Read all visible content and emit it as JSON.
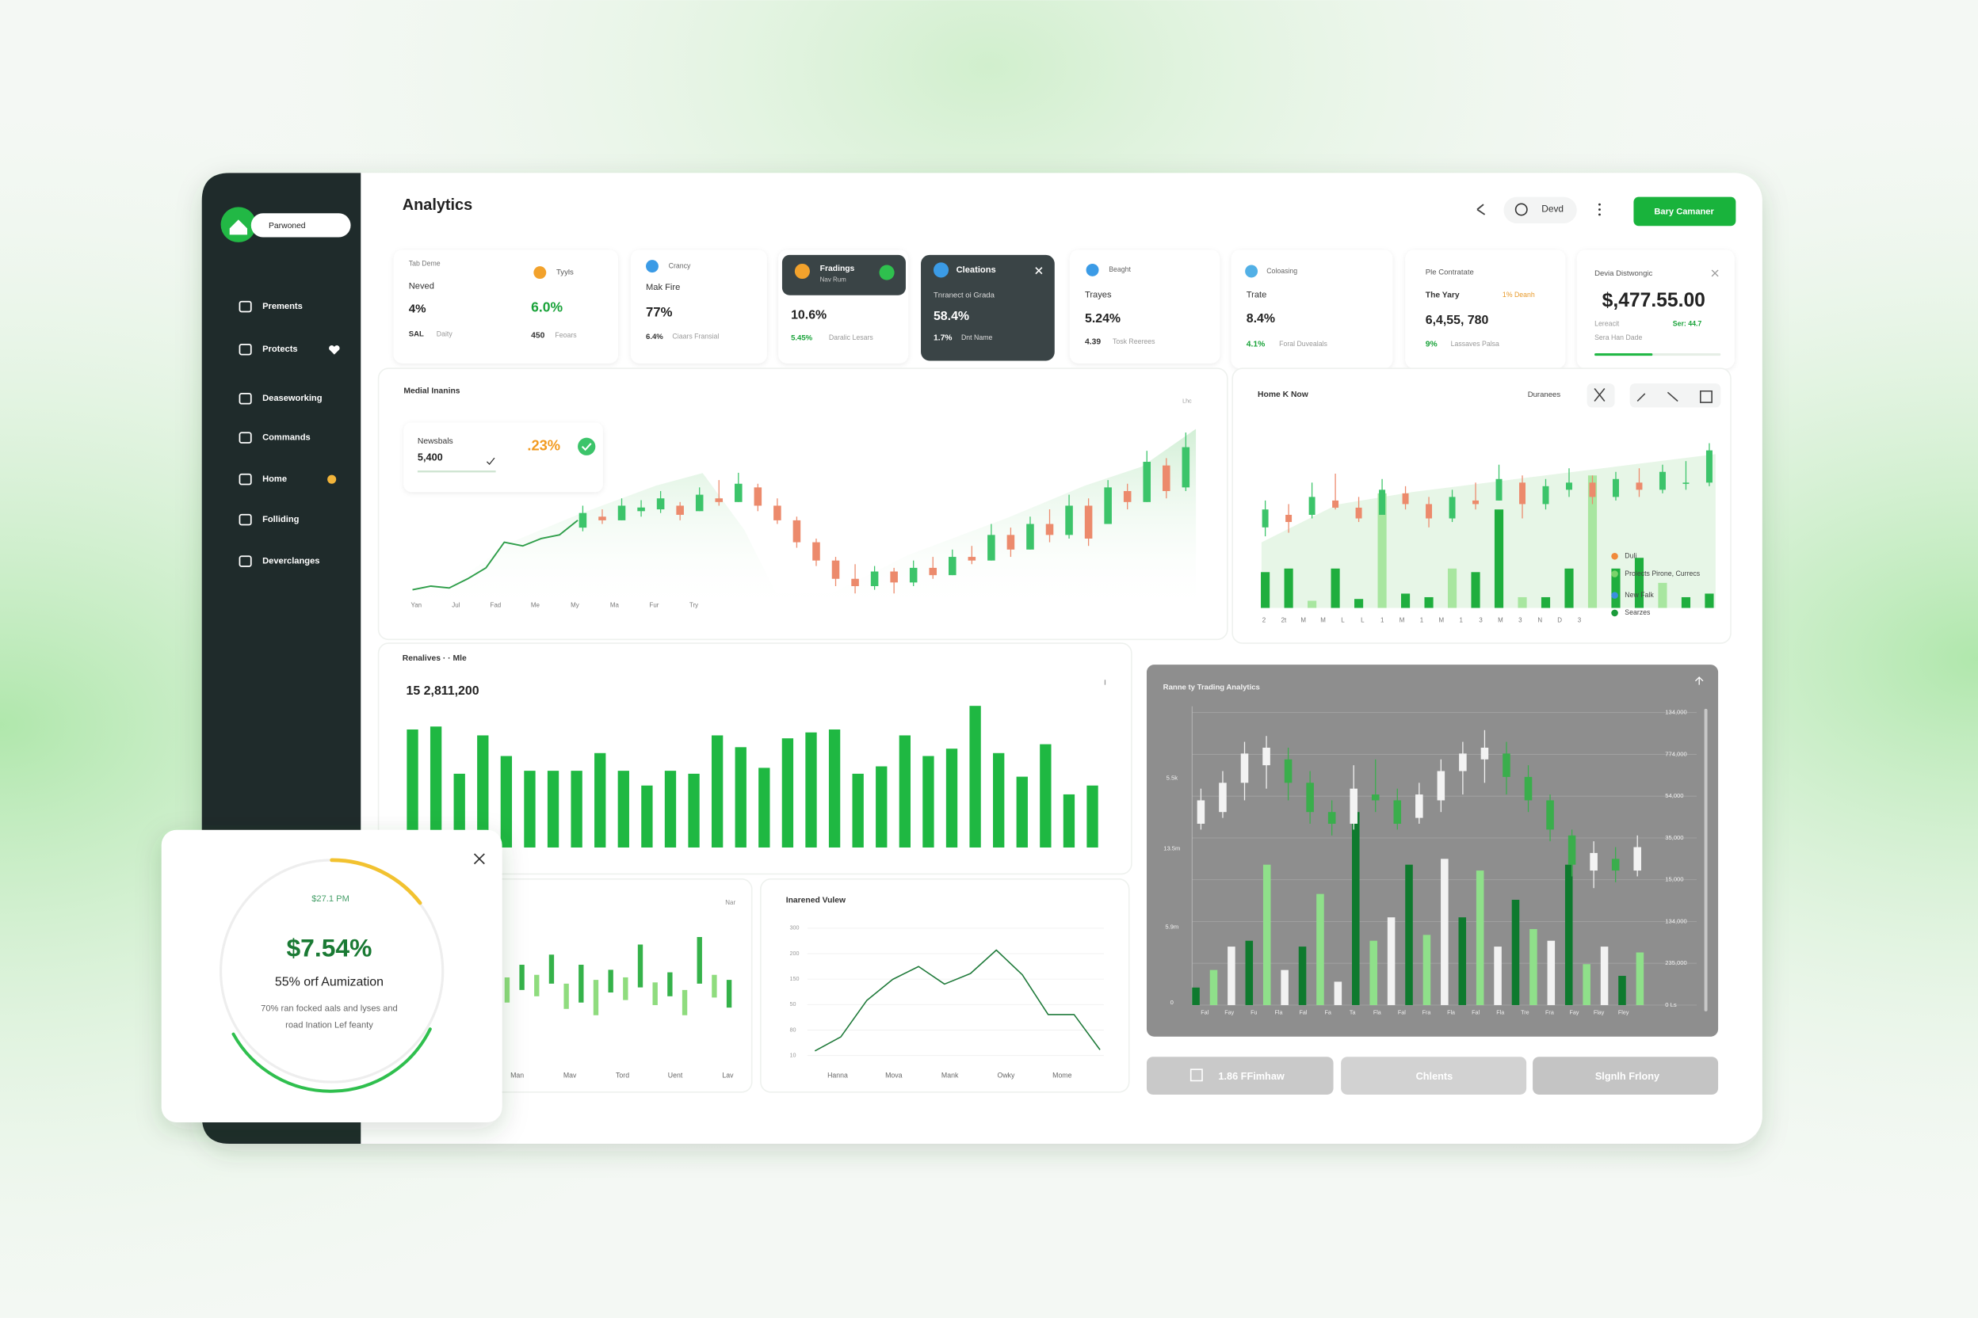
{
  "sidebar": {
    "brand": "Parwoned",
    "menu": [
      "Prements",
      "Protects",
      "Deaseworking",
      "Commands",
      "Home",
      "Folliding",
      "Deverclanges"
    ]
  },
  "header": {
    "title": "Analytics",
    "user": "Devd",
    "button": "Bary Camaner"
  },
  "kpis": [
    {
      "title": "Tab Deme",
      "tag": "Tyyls",
      "label": "Neved",
      "value": "4%",
      "change": "6.0%",
      "note_a": "SAL",
      "note_b": "Daity",
      "count": "450",
      "count_note": "Feoars"
    },
    {
      "tag": "Crancy",
      "label": "Mak Fire",
      "value": "77%",
      "change": "6.4%",
      "note": "Ciaars Fransial"
    },
    {
      "title": "Fradings",
      "subtitle": "Nav Rum",
      "value": "10.6%",
      "change": "5.45%",
      "note": "Daralic Lesars"
    },
    {
      "title": "Cleations",
      "label": "Tnranect oi Grada",
      "value": "58.4%",
      "change": "1.7%",
      "note": "Dnt Name"
    },
    {
      "tag": "Beaght",
      "label": "Trayes",
      "value": "5.24%",
      "change": "4.39",
      "note": "Tosk Reerees"
    },
    {
      "tag": "Coloasing",
      "label": "Trate",
      "value": "8.4%",
      "change": "4.1%",
      "note": "Foral Duvealals"
    },
    {
      "title": "Ple Contratate",
      "label": "The Yary",
      "badge": "1% Deanh",
      "value": "6,4,55, 780",
      "change": "9%",
      "note": "Lassaves Palsa"
    },
    {
      "title": "Devia Distwongic",
      "value": "$,477.55.00",
      "label": "Lereacit",
      "change": "Ser: 44.7",
      "note": "Sera Han Dade"
    }
  ],
  "price_chart": {
    "title": "Medial Inanins",
    "corner": "Lhc",
    "summary": {
      "label": "Newsbals",
      "value": "5,400",
      "change": ".23%"
    },
    "x_labels": [
      "Yan",
      "Jul",
      "Fad",
      "Me",
      "My",
      "Ma",
      "Fur",
      "Try"
    ],
    "ylim": [
      0,
      100
    ],
    "line_color": "#2f9e4a",
    "up_color": "#3cc46a",
    "down_color": "#ec8a6c",
    "line": [
      12,
      14,
      13,
      18,
      24,
      38,
      36,
      40,
      42,
      50
    ],
    "candles": [
      [
        44,
        46,
        54,
        58
      ],
      [
        48,
        52,
        50,
        56
      ],
      [
        50,
        50,
        58,
        62
      ],
      [
        52,
        55,
        57,
        61
      ],
      [
        54,
        56,
        62,
        66
      ],
      [
        50,
        58,
        53,
        60
      ],
      [
        55,
        55,
        64,
        68
      ],
      [
        58,
        62,
        60,
        72
      ],
      [
        60,
        60,
        70,
        76
      ],
      [
        55,
        68,
        58,
        70
      ],
      [
        48,
        58,
        50,
        62
      ],
      [
        35,
        50,
        38,
        52
      ],
      [
        25,
        38,
        28,
        40
      ],
      [
        14,
        28,
        18,
        30
      ],
      [
        10,
        18,
        14,
        26
      ],
      [
        12,
        14,
        22,
        25
      ],
      [
        10,
        22,
        16,
        24
      ],
      [
        14,
        16,
        24,
        28
      ],
      [
        18,
        24,
        20,
        30
      ],
      [
        20,
        20,
        30,
        34
      ],
      [
        26,
        30,
        28,
        36
      ],
      [
        28,
        28,
        42,
        48
      ],
      [
        30,
        42,
        34,
        46
      ],
      [
        34,
        34,
        48,
        52
      ],
      [
        38,
        48,
        42,
        56
      ],
      [
        40,
        42,
        58,
        64
      ],
      [
        36,
        58,
        40,
        62
      ],
      [
        48,
        48,
        68,
        72
      ],
      [
        56,
        66,
        60,
        70
      ],
      [
        60,
        60,
        82,
        88
      ],
      [
        62,
        80,
        66,
        84
      ],
      [
        66,
        68,
        90,
        98
      ]
    ]
  },
  "volume_chart": {
    "title": "Home K Now",
    "control": "Duranees",
    "legend": [
      {
        "name": "Duli",
        "color": "#f08a3c"
      },
      {
        "name": "Prolects Pirone, Currecs",
        "color": "#7ad36b"
      },
      {
        "name": "New Falk",
        "color": "#3b8fe0"
      },
      {
        "name": "Searzes",
        "color": "#1a9b3a"
      }
    ],
    "x_labels": [
      "2",
      "2t",
      "M",
      "M",
      "L",
      "L",
      "1",
      "M",
      "1",
      "M",
      "1",
      "3",
      "M",
      "3",
      "N",
      "D",
      "3"
    ],
    "ylim": [
      0,
      100
    ],
    "up_color": "#3cc46a",
    "down_color": "#ec8a6c",
    "bar_colors": [
      "#1fae3e",
      "#1fae3e",
      "#a8e6a0"
    ],
    "bars": [
      20,
      22,
      4,
      22,
      5,
      64,
      8,
      6,
      22,
      20,
      55,
      6,
      6,
      22,
      74,
      22,
      28,
      14,
      6,
      8
    ],
    "candles": [
      [
        40,
        45,
        55,
        60
      ],
      [
        42,
        52,
        48,
        58
      ],
      [
        50,
        52,
        62,
        70
      ],
      [
        55,
        60,
        56,
        75
      ],
      [
        48,
        56,
        50,
        62
      ],
      [
        52,
        52,
        66,
        72
      ],
      [
        55,
        64,
        58,
        68
      ],
      [
        45,
        58,
        50,
        62
      ],
      [
        48,
        50,
        62,
        66
      ],
      [
        55,
        60,
        58,
        70
      ],
      [
        60,
        60,
        72,
        80
      ],
      [
        50,
        70,
        58,
        74
      ],
      [
        55,
        58,
        68,
        72
      ],
      [
        62,
        66,
        70,
        78
      ],
      [
        58,
        70,
        62,
        74
      ],
      [
        60,
        62,
        72,
        76
      ],
      [
        62,
        70,
        66,
        78
      ],
      [
        64,
        66,
        76,
        80
      ],
      [
        66,
        70,
        70,
        82
      ],
      [
        68,
        70,
        88,
        92
      ]
    ]
  },
  "revenue_chart": {
    "title": "Renalives · · Mle",
    "total": "15 2,811,200",
    "ylim": [
      0,
      100
    ],
    "color": "#1fb842",
    "values": [
      80,
      82,
      50,
      76,
      62,
      52,
      52,
      52,
      64,
      52,
      42,
      52,
      50,
      76,
      68,
      54,
      74,
      78,
      80,
      50,
      55,
      76,
      62,
      67,
      96,
      64,
      48,
      70,
      36,
      42
    ]
  },
  "range_chart": {
    "corner": "Nar",
    "x_labels": [
      "Man",
      "Mav",
      "Tord",
      "Uent",
      "Lav"
    ],
    "ylim": [
      0,
      100
    ],
    "colors": [
      "#8fdc7e",
      "#35b24a"
    ],
    "ranges": [
      [
        40,
        60
      ],
      [
        50,
        70
      ],
      [
        45,
        62
      ],
      [
        55,
        78
      ],
      [
        35,
        55
      ],
      [
        40,
        70
      ],
      [
        30,
        58
      ],
      [
        48,
        66
      ],
      [
        42,
        60
      ],
      [
        52,
        86
      ],
      [
        38,
        56
      ],
      [
        45,
        64
      ],
      [
        30,
        50
      ],
      [
        55,
        92
      ],
      [
        44,
        62
      ],
      [
        36,
        58
      ]
    ]
  },
  "value_chart": {
    "title": "Inarened Vulew",
    "y_labels": [
      "300",
      "200",
      "150",
      "50",
      "80",
      "10"
    ],
    "x_labels": [
      "Hanna",
      "Mova",
      "Mank",
      "Owky",
      "Mome"
    ],
    "ylim": [
      0,
      100
    ],
    "color": "#1f7a3a",
    "values": [
      5,
      17,
      48,
      66,
      77,
      62,
      71,
      91,
      70,
      36,
      36,
      6
    ]
  },
  "gray_chart": {
    "title": "Ranne ty Trading Analytics",
    "left_labels": [
      "5.5k",
      "13.5m",
      "5.9m",
      "0"
    ],
    "right_labels": [
      "134,000",
      "774,000",
      "54,000",
      "35,000",
      "15,000",
      "134,000",
      "235,000",
      "0 Ls"
    ],
    "x_labels": [
      "Fal",
      "Fay",
      "Fu",
      "Fla",
      "Fal",
      "Fa",
      "Ta",
      "Fla",
      "Fal",
      "Fra",
      "Fla",
      "Fal",
      "Fla",
      "Tre",
      "Fra",
      "Fay",
      "Flay",
      "Fley"
    ],
    "ylim": [
      0,
      100
    ],
    "up_color": "#f3f3f3",
    "down_color": "#3aae4c",
    "bar_colors": [
      "#0e7a2e",
      "#8fe08a",
      "#f2f2f2"
    ],
    "candles": [
      [
        60,
        62,
        70,
        74
      ],
      [
        64,
        66,
        76,
        80
      ],
      [
        70,
        76,
        86,
        90
      ],
      [
        74,
        82,
        88,
        92
      ],
      [
        70,
        84,
        76,
        88
      ],
      [
        62,
        76,
        66,
        80
      ],
      [
        58,
        66,
        62,
        70
      ],
      [
        60,
        62,
        74,
        82
      ],
      [
        66,
        72,
        70,
        84
      ],
      [
        60,
        70,
        62,
        74
      ],
      [
        62,
        64,
        72,
        76
      ],
      [
        66,
        70,
        80,
        84
      ],
      [
        72,
        80,
        86,
        90
      ],
      [
        76,
        84,
        88,
        94
      ],
      [
        72,
        86,
        78,
        90
      ],
      [
        66,
        78,
        70,
        82
      ],
      [
        56,
        70,
        60,
        72
      ],
      [
        44,
        58,
        48,
        60
      ],
      [
        40,
        46,
        52,
        56
      ],
      [
        42,
        50,
        46,
        54
      ],
      [
        44,
        46,
        54,
        58
      ]
    ],
    "bars": [
      6,
      12,
      20,
      22,
      48,
      12,
      20,
      38,
      8,
      66,
      22,
      30,
      48,
      24,
      50,
      30,
      46,
      20,
      36,
      26,
      22,
      48,
      14,
      20,
      10,
      18
    ]
  },
  "buttons": [
    "1.86 FFimhaw",
    "Chlents",
    "Slgnlh Frlony"
  ],
  "popup": {
    "caption": "$27.1 PM",
    "value": "$7.54%",
    "label": "55% orf Aumization",
    "text": [
      "70% ran focked aals and lyses and",
      "road Ination Lef feanty"
    ]
  }
}
